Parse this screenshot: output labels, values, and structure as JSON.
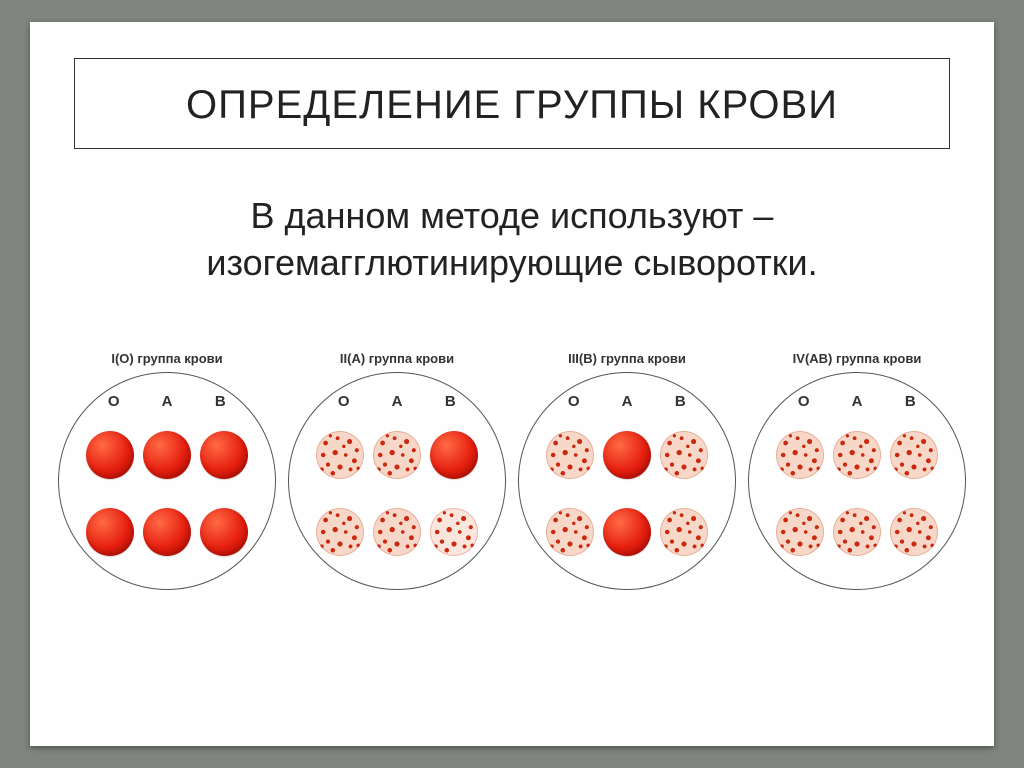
{
  "background_color": "#808580",
  "slide_background": "#ffffff",
  "title": "ОПРЕДЕЛЕНИЕ ГРУППЫ КРОВИ",
  "title_fontsize": 40,
  "subtitle_line1": "В данном методе используют –",
  "subtitle_line2": "изогемагглютинирующие сыворотки.",
  "subtitle_fontsize": 36,
  "column_labels": [
    "O",
    "A",
    "B"
  ],
  "drop_colors": {
    "solid_gradient": [
      "#ff6a45",
      "#e62010",
      "#b51000"
    ],
    "agg_background": "#f7d8c8",
    "agg_background_light": "#fae6dc",
    "agg_speckle": "#cc2a10"
  },
  "plate_border_color": "#555555",
  "plates": [
    {
      "title": "I(O) группа крови",
      "drops": [
        [
          "solid",
          "solid",
          "solid"
        ],
        [
          "solid",
          "solid",
          "solid"
        ]
      ]
    },
    {
      "title": "II(A) группа крови",
      "drops": [
        [
          "agg",
          "agg",
          "solid"
        ],
        [
          "agg",
          "agg",
          "agg light"
        ]
      ]
    },
    {
      "title": "III(B) группа крови",
      "drops": [
        [
          "agg",
          "solid",
          "agg"
        ],
        [
          "agg",
          "solid",
          "agg"
        ]
      ]
    },
    {
      "title": "IV(AB) группа крови",
      "drops": [
        [
          "agg",
          "agg",
          "agg"
        ],
        [
          "agg",
          "agg",
          "agg"
        ]
      ]
    }
  ]
}
